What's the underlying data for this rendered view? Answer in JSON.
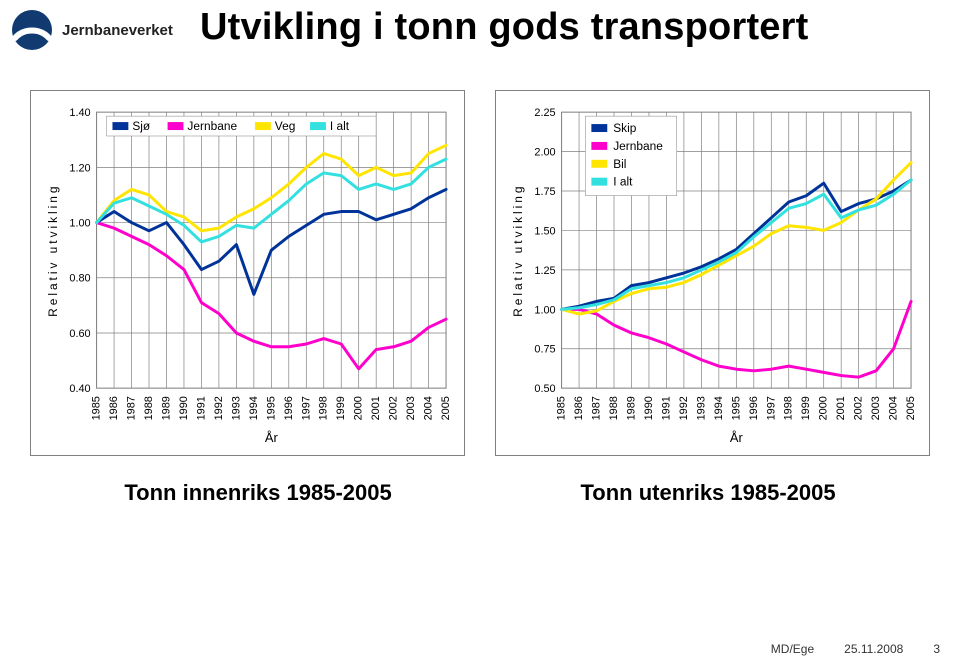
{
  "brand": "Jernbaneverket",
  "slide_title": "Utvikling i tonn gods transportert",
  "footer": {
    "left": "MD/Ege",
    "date": "25.11.2008",
    "page": "3"
  },
  "chart_left": {
    "type": "line",
    "subtitle": "Tonn innenriks 1985-2005",
    "ylabel": "Relativ utvikling",
    "xlabel": "År",
    "ylim": [
      0.4,
      1.4
    ],
    "ytick_step": 0.2,
    "years": [
      "1985",
      "1986",
      "1987",
      "1988",
      "1989",
      "1990",
      "1991",
      "1992",
      "1993",
      "1994",
      "1995",
      "1996",
      "1997",
      "1998",
      "1999",
      "2000",
      "2001",
      "2002",
      "2003",
      "2004",
      "2005"
    ],
    "series": [
      {
        "name": "Sjø",
        "color": "#003399",
        "data": [
          1.0,
          1.04,
          1.0,
          0.97,
          1.0,
          0.92,
          0.83,
          0.86,
          0.92,
          0.74,
          0.9,
          0.95,
          0.99,
          1.03,
          1.04,
          1.04,
          1.01,
          1.03,
          1.05,
          1.09,
          1.12
        ]
      },
      {
        "name": "Jernbane",
        "color": "#ff00cc",
        "data": [
          1.0,
          0.98,
          0.95,
          0.92,
          0.88,
          0.83,
          0.71,
          0.67,
          0.6,
          0.57,
          0.55,
          0.55,
          0.56,
          0.58,
          0.56,
          0.47,
          0.54,
          0.55,
          0.57,
          0.62,
          0.65
        ]
      },
      {
        "name": "Veg",
        "color": "#ffe500",
        "data": [
          1.0,
          1.08,
          1.12,
          1.1,
          1.04,
          1.02,
          0.97,
          0.98,
          1.02,
          1.05,
          1.09,
          1.14,
          1.2,
          1.25,
          1.23,
          1.17,
          1.2,
          1.17,
          1.18,
          1.25,
          1.28
        ]
      },
      {
        "name": "I alt",
        "color": "#33e0e0",
        "data": [
          1.0,
          1.07,
          1.09,
          1.06,
          1.03,
          0.99,
          0.93,
          0.95,
          0.99,
          0.98,
          1.03,
          1.08,
          1.14,
          1.18,
          1.17,
          1.12,
          1.14,
          1.12,
          1.14,
          1.2,
          1.23
        ]
      }
    ],
    "legend": [
      "Sjø",
      "Jernbane",
      "Veg",
      "I alt"
    ],
    "legend_colors": [
      "#003399",
      "#ff00cc",
      "#ffe500",
      "#33e0e0"
    ],
    "background_color": "#ffffff",
    "border_color": "#808080",
    "grid_color": "#808080",
    "line_width": 3
  },
  "chart_right": {
    "type": "line",
    "subtitle": "Tonn utenriks 1985-2005",
    "ylabel": "Relativ utvikling",
    "xlabel": "År",
    "ylim": [
      0.5,
      2.25
    ],
    "ytick_step": 0.25,
    "years": [
      "1985",
      "1986",
      "1987",
      "1988",
      "1989",
      "1990",
      "1991",
      "1992",
      "1993",
      "1994",
      "1995",
      "1996",
      "1997",
      "1998",
      "1999",
      "2000",
      "2001",
      "2002",
      "2003",
      "2004",
      "2005"
    ],
    "series": [
      {
        "name": "Skip",
        "color": "#003399",
        "data": [
          1.0,
          1.02,
          1.05,
          1.07,
          1.15,
          1.17,
          1.2,
          1.23,
          1.27,
          1.32,
          1.38,
          1.48,
          1.58,
          1.68,
          1.72,
          1.8,
          1.62,
          1.67,
          1.7,
          1.75,
          1.82
        ]
      },
      {
        "name": "Jernbane",
        "color": "#ff00cc",
        "data": [
          1.0,
          1.0,
          0.97,
          0.9,
          0.85,
          0.82,
          0.78,
          0.73,
          0.68,
          0.64,
          0.62,
          0.61,
          0.62,
          0.64,
          0.62,
          0.6,
          0.58,
          0.57,
          0.61,
          0.75,
          1.05
        ]
      },
      {
        "name": "Bil",
        "color": "#ffe500",
        "data": [
          1.0,
          0.97,
          0.99,
          1.05,
          1.1,
          1.13,
          1.14,
          1.17,
          1.22,
          1.28,
          1.34,
          1.4,
          1.48,
          1.53,
          1.52,
          1.5,
          1.55,
          1.63,
          1.7,
          1.82,
          1.93
        ]
      },
      {
        "name": "I alt",
        "color": "#33e0e0",
        "data": [
          1.0,
          1.01,
          1.03,
          1.06,
          1.13,
          1.15,
          1.17,
          1.2,
          1.25,
          1.3,
          1.36,
          1.46,
          1.55,
          1.64,
          1.67,
          1.73,
          1.58,
          1.63,
          1.66,
          1.73,
          1.82
        ]
      }
    ],
    "legend": [
      "Skip",
      "Jernbane",
      "Bil",
      "I alt"
    ],
    "legend_colors": [
      "#003399",
      "#ff00cc",
      "#ffe500",
      "#33e0e0"
    ],
    "background_color": "#ffffff",
    "border_color": "#808080",
    "grid_color": "#808080",
    "line_width": 3
  }
}
